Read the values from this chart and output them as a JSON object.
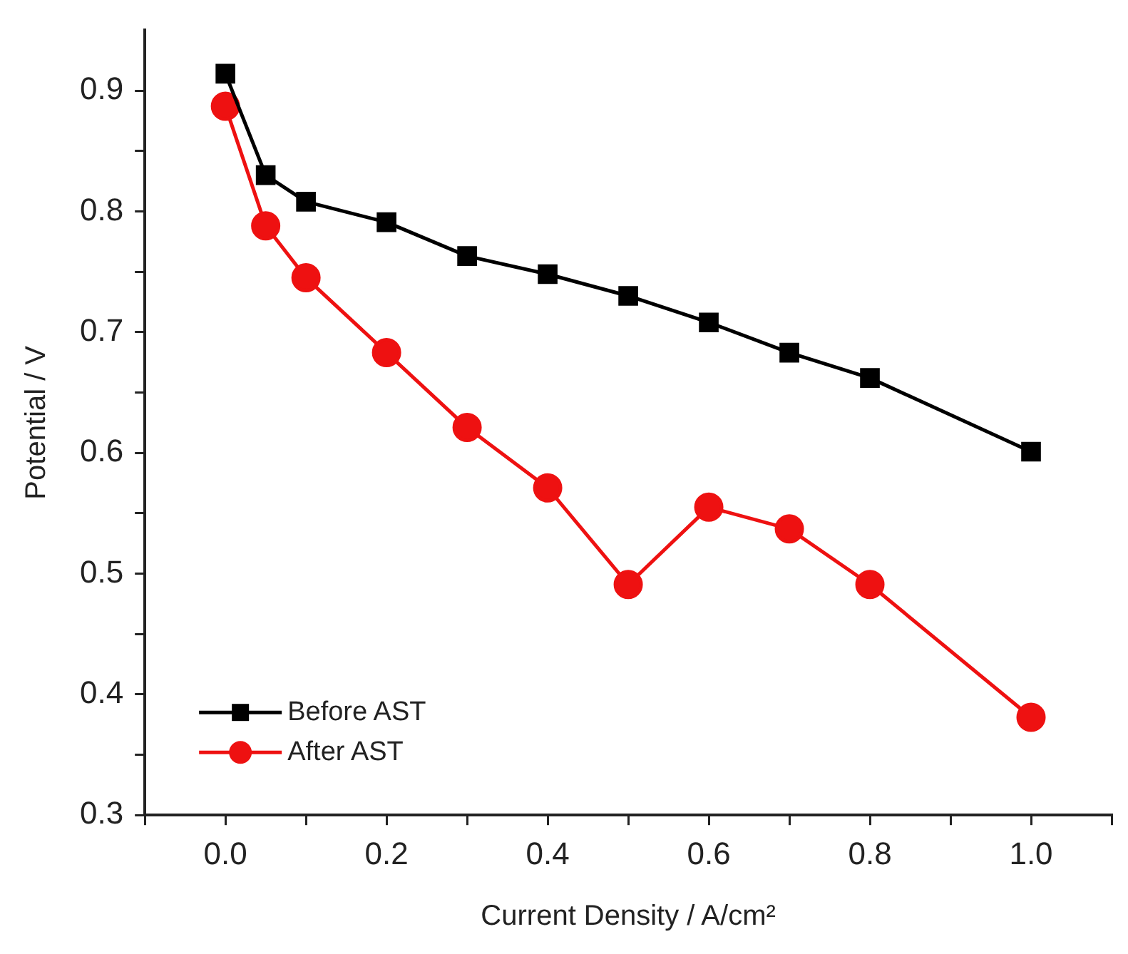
{
  "chart_data": {
    "type": "line",
    "xlabel": "Current Density / A/cm²",
    "ylabel": "Potential / V",
    "xlim": [
      -0.1,
      1.1
    ],
    "ylim": [
      0.3,
      0.95
    ],
    "xticks": [
      {
        "value": -0.1,
        "label": null
      },
      {
        "value": 0,
        "label": "0.0"
      },
      {
        "value": 0.1,
        "label": null
      },
      {
        "value": 0.2,
        "label": "0.2"
      },
      {
        "value": 0.3,
        "label": null
      },
      {
        "value": 0.4,
        "label": "0.4"
      },
      {
        "value": 0.5,
        "label": null
      },
      {
        "value": 0.6,
        "label": "0.6"
      },
      {
        "value": 0.7,
        "label": null
      },
      {
        "value": 0.8,
        "label": "0.8"
      },
      {
        "value": 0.9,
        "label": null
      },
      {
        "value": 1,
        "label": "1.0"
      },
      {
        "value": 1.1,
        "label": null
      }
    ],
    "yticks": [
      {
        "value": 0.3,
        "label": "0.3"
      },
      {
        "value": 0.35,
        "label": null
      },
      {
        "value": 0.4,
        "label": "0.4"
      },
      {
        "value": 0.45,
        "label": null
      },
      {
        "value": 0.5,
        "label": "0.5"
      },
      {
        "value": 0.55,
        "label": null
      },
      {
        "value": 0.6,
        "label": "0.6"
      },
      {
        "value": 0.65,
        "label": null
      },
      {
        "value": 0.7,
        "label": "0.7"
      },
      {
        "value": 0.75,
        "label": null
      },
      {
        "value": 0.8,
        "label": "0.8"
      },
      {
        "value": 0.85,
        "label": null
      },
      {
        "value": 0.9,
        "label": "0.9"
      }
    ],
    "x": [
      0.0,
      0.05,
      0.1,
      0.2,
      0.3,
      0.4,
      0.5,
      0.6,
      0.7,
      0.8,
      1.0
    ],
    "series": [
      {
        "name": "Before AST",
        "color": "#000000",
        "marker": "square",
        "values": [
          0.914,
          0.83,
          0.808,
          0.791,
          0.763,
          0.748,
          0.73,
          0.708,
          0.683,
          0.662,
          0.601
        ]
      },
      {
        "name": "After AST",
        "color": "#ee1111",
        "marker": "circle",
        "values": [
          0.887,
          0.788,
          0.745,
          0.683,
          0.621,
          0.571,
          0.491,
          0.555,
          0.537,
          0.491,
          0.381
        ]
      }
    ],
    "grid": false,
    "legend": "bottom left",
    "line_style": "solid"
  }
}
